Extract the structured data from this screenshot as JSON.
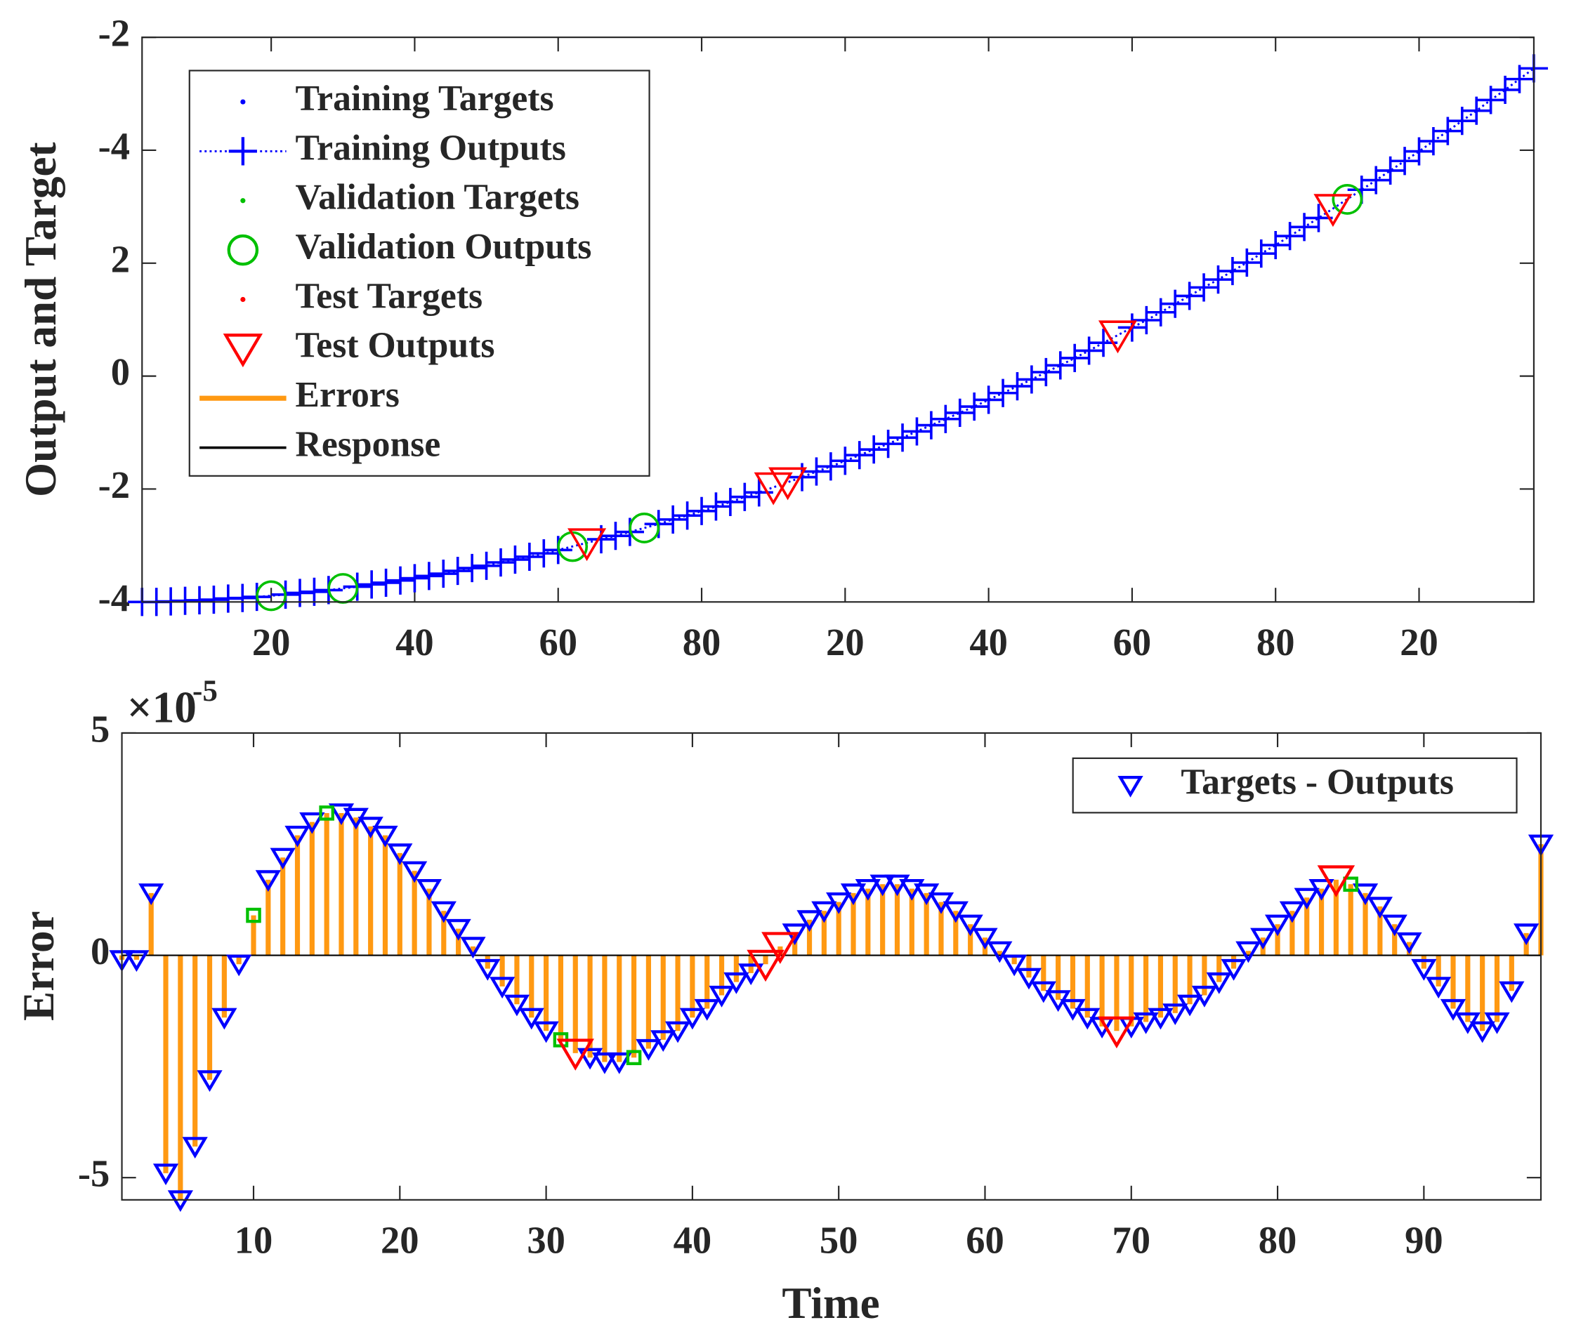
{
  "chart_data": [
    {
      "type": "line",
      "ylabel": "Output and Target",
      "xlim": [
        2,
        196
      ],
      "ylim": [
        -4,
        6
      ],
      "xticks": [
        20,
        40,
        60,
        80,
        {
          "value": 100,
          "label": "20"
        },
        {
          "value": 120,
          "label": "40"
        },
        {
          "value": 140,
          "label": "60"
        },
        {
          "value": 160,
          "label": "80"
        },
        {
          "value": 180,
          "label": "20"
        }
      ],
      "yticks": [
        -4,
        -2,
        0,
        2,
        {
          "value": 4,
          "label": "-4"
        },
        {
          "value": 6,
          "label": "-2"
        }
      ],
      "legend_location": "northwest",
      "legend": [
        {
          "name": "Training Targets",
          "color": "#0000ff",
          "marker": "."
        },
        {
          "name": "Training Outputs",
          "color": "#0000ff",
          "marker": "+",
          "linestyle": ":"
        },
        {
          "name": "Validation Targets",
          "color": "#00c000",
          "marker": "."
        },
        {
          "name": "Validation Outputs",
          "color": "#00c000",
          "marker": "o"
        },
        {
          "name": "Test Targets",
          "color": "#ff0000",
          "marker": "."
        },
        {
          "name": "Test Outputs",
          "color": "#ff0000",
          "marker": "v"
        },
        {
          "name": "Errors",
          "color": "#ff9912",
          "marker": "-"
        },
        {
          "name": "Response",
          "color": "#000000",
          "marker": "-"
        }
      ],
      "series": [
        {
          "color": "#0000ff",
          "marker": "+",
          "linestyle": ":",
          "x": [
            2,
            4,
            6,
            8,
            10,
            12,
            14,
            16,
            18,
            22,
            24,
            26,
            28,
            32,
            34,
            36,
            38,
            40,
            42,
            44,
            46,
            48,
            50,
            52,
            54,
            56,
            58,
            60,
            66,
            68,
            70,
            74,
            76,
            78,
            80,
            82,
            84,
            86,
            88,
            94,
            96,
            98,
            100,
            102,
            104,
            106,
            108,
            110,
            112,
            114,
            116,
            118,
            120,
            122,
            124,
            126,
            128,
            130,
            132,
            134,
            136,
            140,
            142,
            144,
            146,
            148,
            150,
            152,
            154,
            156,
            158,
            160,
            162,
            164,
            166,
            172,
            174,
            176,
            178,
            180,
            182,
            184,
            186,
            188,
            190,
            192,
            194,
            196
          ],
          "values": [
            -4.0,
            -4.0,
            -3.99,
            -3.98,
            -3.97,
            -3.96,
            -3.94,
            -3.93,
            -3.91,
            -3.87,
            -3.84,
            -3.82,
            -3.79,
            -3.73,
            -3.69,
            -3.66,
            -3.62,
            -3.58,
            -3.54,
            -3.5,
            -3.45,
            -3.4,
            -3.36,
            -3.3,
            -3.25,
            -3.2,
            -3.14,
            -3.08,
            -2.89,
            -2.83,
            -2.76,
            -2.62,
            -2.54,
            -2.47,
            -2.39,
            -2.31,
            -2.23,
            -2.14,
            -2.06,
            -1.79,
            -1.69,
            -1.6,
            -1.5,
            -1.4,
            -1.3,
            -1.2,
            -1.09,
            -0.98,
            -0.87,
            -0.76,
            -0.65,
            -0.54,
            -0.42,
            -0.3,
            -0.18,
            -0.06,
            0.07,
            0.19,
            0.32,
            0.45,
            0.59,
            0.86,
            0.99,
            1.13,
            1.28,
            1.42,
            1.57,
            1.71,
            1.86,
            2.01,
            2.17,
            2.32,
            2.48,
            2.64,
            2.8,
            3.3,
            3.47,
            3.64,
            3.81,
            3.98,
            4.16,
            4.34,
            4.52,
            4.7,
            4.89,
            5.07,
            5.26,
            5.45
          ]
        },
        {
          "color": "#00c000",
          "marker": "o",
          "x": [
            20,
            30,
            62,
            72,
            170
          ],
          "values": [
            -3.89,
            -3.76,
            -3.02,
            -2.69,
            3.13
          ]
        },
        {
          "color": "#ff0000",
          "marker": "v",
          "x": [
            64,
            90,
            92,
            138,
            168
          ],
          "values": [
            -2.96,
            -1.97,
            -1.88,
            0.72,
            2.96
          ]
        }
      ]
    },
    {
      "type": "stem",
      "xlabel": "Time",
      "ylabel": "Error",
      "y_multiplier": {
        "base": "×10",
        "exponent": "-5"
      },
      "xlim": [
        1,
        98
      ],
      "ylim": [
        -5.5,
        5
      ],
      "xticks": [
        10,
        20,
        30,
        40,
        50,
        60,
        70,
        80,
        90
      ],
      "yticks": [
        -5,
        0,
        5
      ],
      "stem_color": "#ff9912",
      "legend_location": "northeast",
      "legend": [
        {
          "name": "Targets - Outputs",
          "color": "#0000ff",
          "marker": "v"
        }
      ],
      "series": [
        {
          "color": "#0000ff",
          "marker": "v",
          "x": [
            1,
            2,
            3,
            4,
            5,
            6,
            7,
            8,
            9,
            11,
            12,
            13,
            14,
            16,
            17,
            18,
            19,
            20,
            21,
            22,
            23,
            24,
            25,
            26,
            27,
            28,
            29,
            30,
            33,
            34,
            35,
            37,
            38,
            39,
            40,
            41,
            42,
            43,
            44,
            47,
            48,
            49,
            50,
            51,
            52,
            53,
            54,
            55,
            56,
            57,
            58,
            59,
            60,
            61,
            62,
            63,
            64,
            65,
            66,
            67,
            68,
            70,
            71,
            72,
            73,
            74,
            75,
            76,
            77,
            78,
            79,
            80,
            81,
            82,
            83,
            86,
            87,
            88,
            89,
            90,
            91,
            92,
            93,
            94,
            95,
            96,
            97,
            98
          ],
          "values": [
            -0.1,
            -0.1,
            1.4,
            -4.9,
            -5.5,
            -4.3,
            -2.8,
            -1.4,
            -0.2,
            1.7,
            2.2,
            2.7,
            3.0,
            3.2,
            3.1,
            2.9,
            2.7,
            2.3,
            1.9,
            1.5,
            1.0,
            0.6,
            0.2,
            -0.3,
            -0.7,
            -1.1,
            -1.4,
            -1.7,
            -2.3,
            -2.4,
            -2.4,
            -2.1,
            -1.9,
            -1.7,
            -1.4,
            -1.2,
            -0.9,
            -0.6,
            -0.4,
            0.5,
            0.8,
            1.0,
            1.2,
            1.4,
            1.5,
            1.6,
            1.6,
            1.5,
            1.4,
            1.2,
            1.0,
            0.7,
            0.4,
            0.1,
            -0.2,
            -0.5,
            -0.8,
            -1.0,
            -1.2,
            -1.4,
            -1.6,
            -1.6,
            -1.5,
            -1.4,
            -1.3,
            -1.1,
            -0.9,
            -0.6,
            -0.3,
            0.1,
            0.4,
            0.7,
            1.0,
            1.3,
            1.5,
            1.4,
            1.1,
            0.7,
            0.3,
            -0.3,
            -0.7,
            -1.2,
            -1.5,
            -1.7,
            -1.5,
            -0.8,
            0.5,
            2.5
          ]
        },
        {
          "color": "#00c000",
          "marker": "s",
          "x": [
            10,
            15,
            31,
            36,
            85
          ],
          "values": [
            0.9,
            3.2,
            -1.9,
            -2.3,
            1.6
          ]
        },
        {
          "color": "#ff0000",
          "marker": "V",
          "x": [
            32,
            45,
            46,
            69,
            84
          ],
          "values": [
            -2.2,
            -0.2,
            0.2,
            -1.7,
            1.7
          ]
        }
      ]
    }
  ]
}
